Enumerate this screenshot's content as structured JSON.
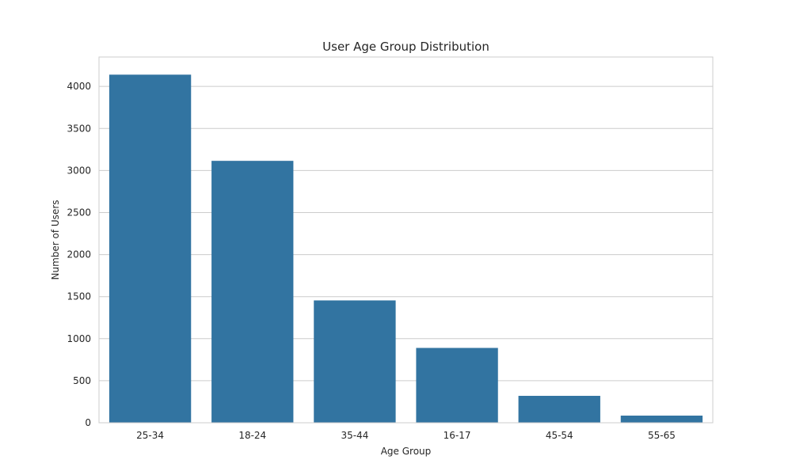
{
  "chart_data": {
    "type": "bar",
    "title": "User Age Group Distribution",
    "xlabel": "Age Group",
    "ylabel": "Number of Users",
    "categories": [
      "25-34",
      "18-24",
      "35-44",
      "16-17",
      "45-54",
      "55-65"
    ],
    "values": [
      4140,
      3115,
      1455,
      890,
      320,
      85
    ],
    "ylim": [
      0,
      4350
    ],
    "yticks": [
      0,
      500,
      1000,
      1500,
      2000,
      2500,
      3000,
      3500,
      4000
    ],
    "grid": true,
    "grid_axis": "y",
    "bar_color": "#3274a1"
  }
}
